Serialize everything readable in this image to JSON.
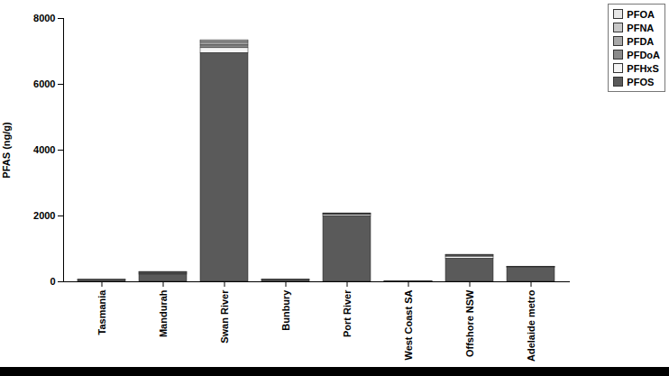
{
  "chart_data": {
    "type": "bar",
    "stacked": true,
    "legend": "top-right",
    "y_label": "PFAS (ng/g)",
    "categories": [
      "Tasmania",
      "Mandurah",
      "Swan River",
      "Bunbury",
      "Port River",
      "West Coast SA",
      "Offshore NSW",
      "Adelaide metro"
    ],
    "series": [
      {
        "name": "PFOA",
        "color": "#e6e6e6",
        "values": [
          0,
          10,
          30,
          0,
          10,
          0,
          10,
          2
        ]
      },
      {
        "name": "PFNA",
        "color": "#c8c8c8",
        "values": [
          2,
          10,
          50,
          1,
          10,
          1,
          10,
          3
        ]
      },
      {
        "name": "PFDA",
        "color": "#a8a8a8",
        "values": [
          3,
          20,
          80,
          2,
          15,
          1,
          20,
          10
        ]
      },
      {
        "name": "PFDoA",
        "color": "#8a8a8a",
        "values": [
          0,
          20,
          80,
          2,
          15,
          1,
          20,
          10
        ]
      },
      {
        "name": "PFHxS",
        "color": "#f4f4f4",
        "values": [
          5,
          20,
          150,
          5,
          40,
          2,
          60,
          15
        ]
      },
      {
        "name": "PFOS",
        "color": "#5a5a5a",
        "values": [
          50,
          220,
          6950,
          50,
          1990,
          15,
          700,
          420
        ]
      }
    ],
    "ylim": [
      0,
      8000
    ],
    "yticks": [
      0,
      2000,
      4000,
      6000,
      8000
    ],
    "grid": false
  }
}
